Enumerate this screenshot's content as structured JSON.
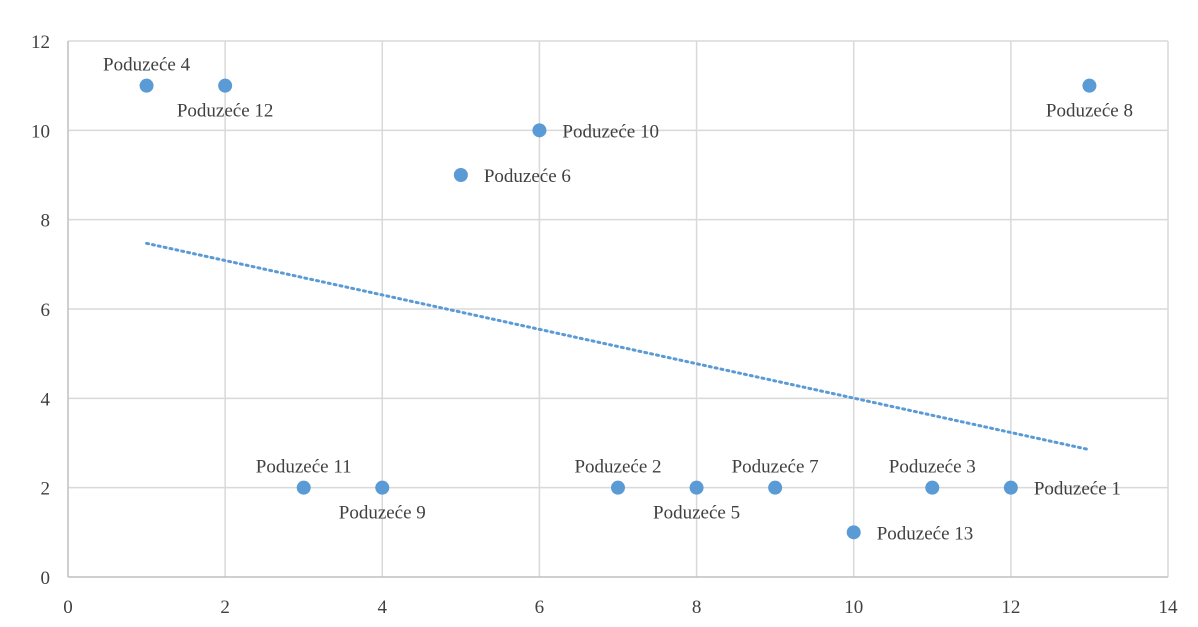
{
  "chart_data": {
    "type": "scatter",
    "title": "",
    "xlabel": "",
    "ylabel": "",
    "xlim": [
      0,
      14
    ],
    "ylim": [
      0,
      12
    ],
    "x_ticks": [
      0,
      2,
      4,
      6,
      8,
      10,
      12,
      14
    ],
    "y_ticks": [
      0,
      2,
      4,
      6,
      8,
      10,
      12
    ],
    "grid": true,
    "legend": "none",
    "colors": {
      "points": "#5b9bd5",
      "trendline": "#5b9bd5",
      "grid": "#d9d9d9"
    },
    "points": [
      {
        "label": "Poduzeće 4",
        "x": 1,
        "y": 11,
        "label_pos": "above"
      },
      {
        "label": "Poduzeće 12",
        "x": 2,
        "y": 11,
        "label_pos": "below"
      },
      {
        "label": "Poduzeće 10",
        "x": 6,
        "y": 10,
        "label_pos": "right"
      },
      {
        "label": "Poduzeće 6",
        "x": 5,
        "y": 9,
        "label_pos": "right"
      },
      {
        "label": "Poduzeće 8",
        "x": 13,
        "y": 11,
        "label_pos": "below"
      },
      {
        "label": "Poduzeće 11",
        "x": 3,
        "y": 2,
        "label_pos": "above"
      },
      {
        "label": "Poduzeće 9",
        "x": 4,
        "y": 2,
        "label_pos": "below"
      },
      {
        "label": "Poduzeće 2",
        "x": 7,
        "y": 2,
        "label_pos": "above"
      },
      {
        "label": "Poduzeće 5",
        "x": 8,
        "y": 2,
        "label_pos": "below"
      },
      {
        "label": "Poduzeće 7",
        "x": 9,
        "y": 2,
        "label_pos": "above"
      },
      {
        "label": "Poduzeće 13",
        "x": 10,
        "y": 1,
        "label_pos": "right"
      },
      {
        "label": "Poduzeće 3",
        "x": 11,
        "y": 2,
        "label_pos": "above"
      },
      {
        "label": "Poduzeće 1",
        "x": 12,
        "y": 2,
        "label_pos": "right"
      }
    ],
    "trendline": {
      "type": "linear",
      "x": [
        1,
        13
      ],
      "y": [
        7.47,
        2.85
      ],
      "style": "dotted"
    }
  }
}
